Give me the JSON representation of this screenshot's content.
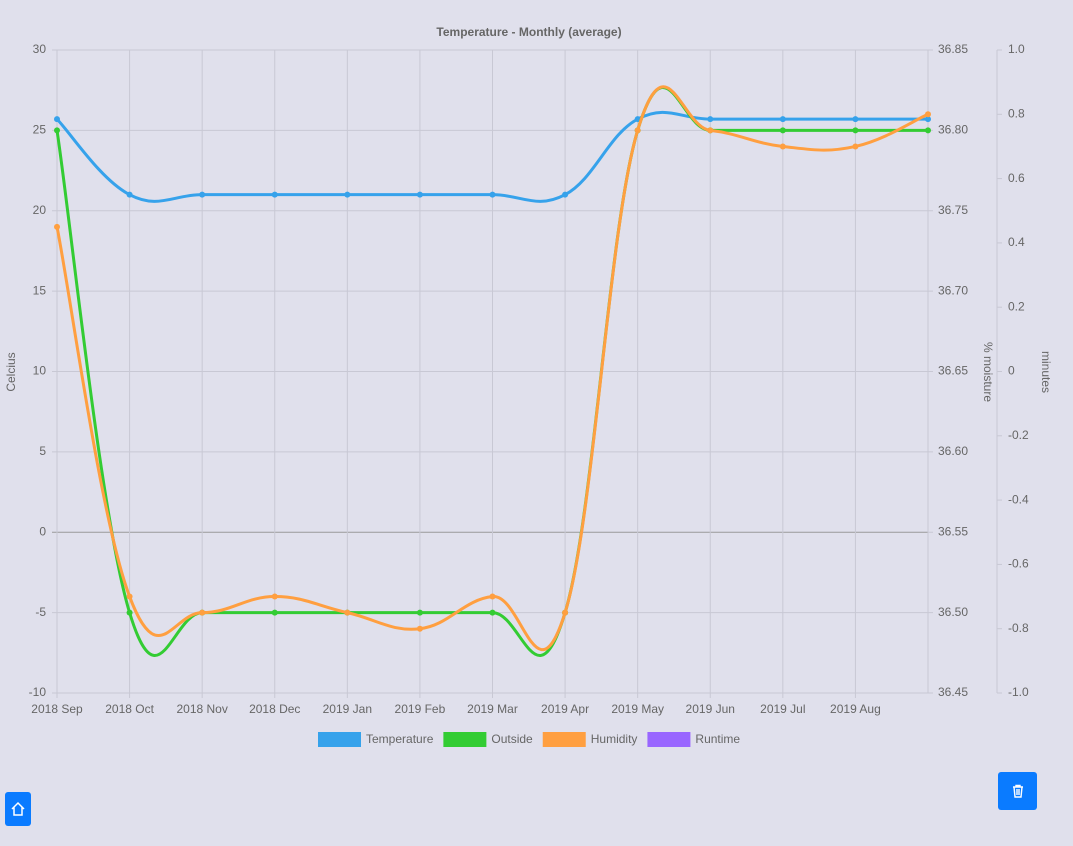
{
  "chart_data": {
    "type": "line",
    "title": "Temperature - Monthly (average)",
    "categories": [
      "2018 Sep",
      "2018 Oct",
      "2018 Nov",
      "2018 Dec",
      "2019 Jan",
      "2019 Feb",
      "2019 Mar",
      "2019 Apr",
      "2019 May",
      "2019 Jun",
      "2019 Jul",
      "2019 Aug",
      null
    ],
    "series": [
      {
        "name": "Temperature",
        "color": "#36a2eb",
        "values": [
          25.7,
          21,
          21,
          21,
          21,
          21,
          21,
          21,
          25.7,
          25.7,
          25.7,
          25.7,
          25.7
        ]
      },
      {
        "name": "Outside",
        "color": "#33cc33",
        "values": [
          25,
          -5,
          -5,
          -5,
          -5,
          -5,
          -5,
          -5,
          25,
          25,
          25,
          25,
          25
        ]
      },
      {
        "name": "Humidity",
        "color": "#ff9f40",
        "values": [
          19,
          -4,
          -5,
          -4,
          -5,
          -6,
          -4,
          -5,
          25,
          25,
          24,
          24,
          26
        ]
      },
      {
        "name": "Runtime",
        "color": "#9966ff",
        "axis": "y3",
        "values": [
          null,
          null,
          null,
          null,
          null,
          null,
          null,
          null,
          null,
          null,
          null,
          null,
          null
        ]
      }
    ],
    "ylabel": "Celcius",
    "ylim": [
      -10,
      30
    ],
    "yticks": [
      -10,
      -5,
      0,
      5,
      10,
      15,
      20,
      25,
      30
    ],
    "y2label": "% moisture",
    "y2lim": [
      36.45,
      36.85
    ],
    "y2ticks": [
      {
        "value": 36.45,
        "label": "36.45"
      },
      {
        "value": 36.5,
        "label": "36.50"
      },
      {
        "value": 36.55,
        "label": "36.55"
      },
      {
        "value": 36.6,
        "label": "36.60"
      },
      {
        "value": 36.65,
        "label": "36.65"
      },
      {
        "value": 36.7,
        "label": "36.70"
      },
      {
        "value": 36.75,
        "label": "36.75"
      },
      {
        "value": 36.8,
        "label": "36.80"
      },
      {
        "value": 36.85,
        "label": "36.85"
      }
    ],
    "y3label": "minutes",
    "y3lim": [
      -1,
      1
    ],
    "y3ticks": [
      {
        "value": -1,
        "label": "-1.0"
      },
      -0.8,
      -0.6,
      -0.4,
      -0.2,
      0,
      0.2,
      0.4,
      0.6,
      0.8,
      {
        "value": 1,
        "label": "1.0"
      }
    ],
    "grid": true,
    "legend": "bottom"
  }
}
